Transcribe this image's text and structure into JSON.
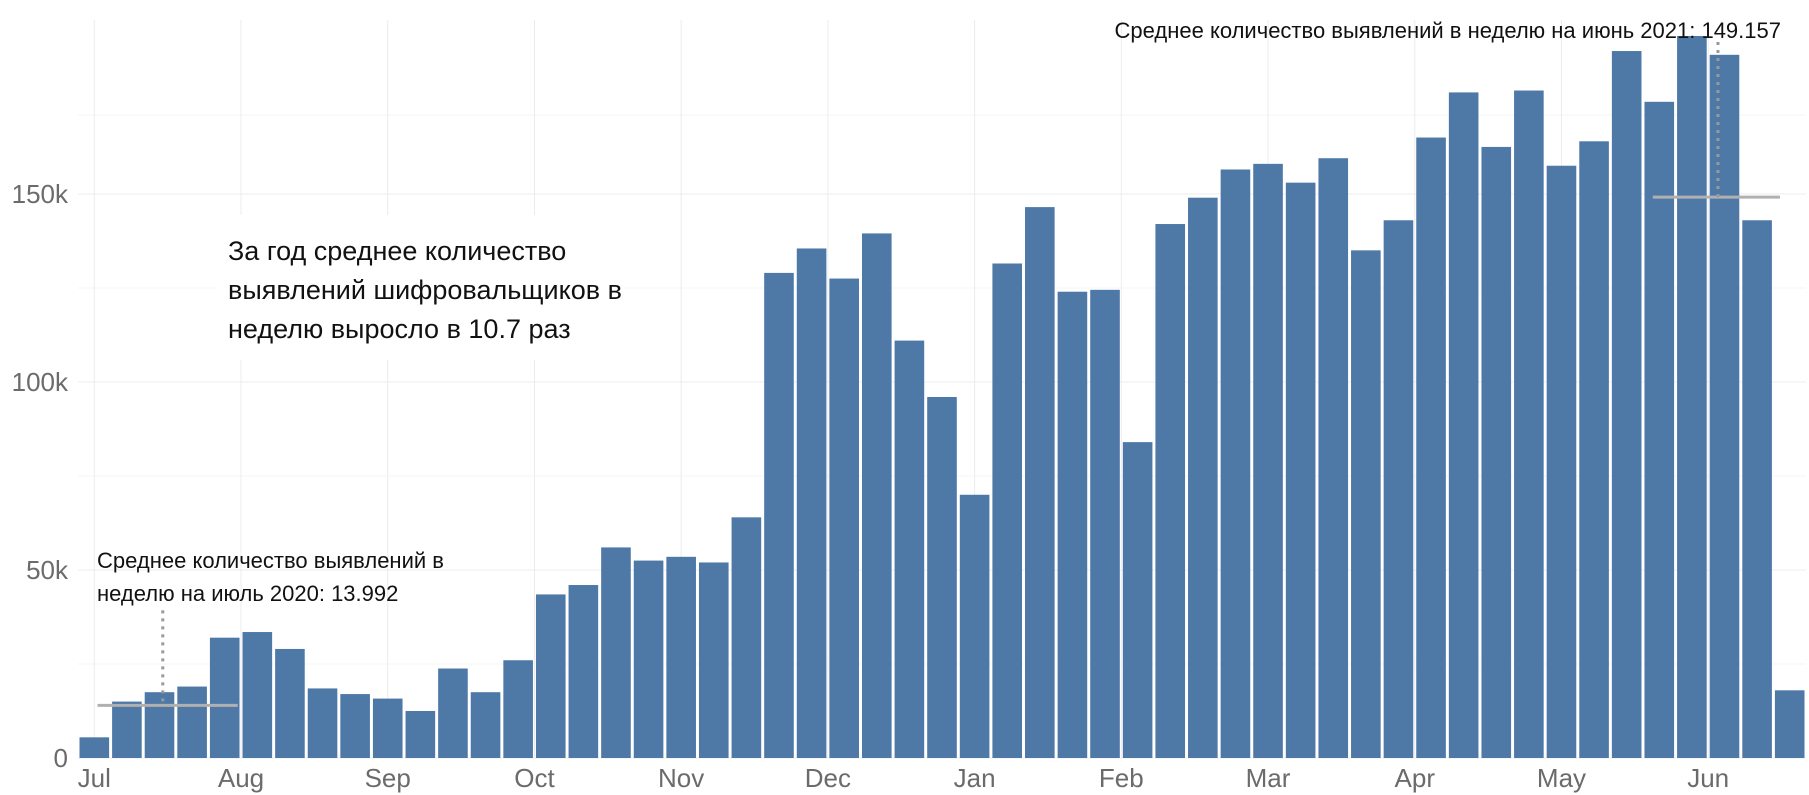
{
  "chart_data": {
    "type": "bar",
    "bar_color": "#4e79a7",
    "x_tick_labels": [
      "Jul",
      "Aug",
      "Sep",
      "Oct",
      "Nov",
      "Dec",
      "Jan",
      "Feb",
      "Mar",
      "Apr",
      "May",
      "Jun"
    ],
    "x_tick_bar_index": [
      0,
      4.5,
      9,
      13.5,
      18,
      22.5,
      27,
      31.5,
      36,
      40.5,
      45,
      49.5
    ],
    "y_ticks": [
      0,
      50000,
      100000,
      150000
    ],
    "y_tick_labels": [
      "0",
      "50k",
      "100k",
      "150k"
    ],
    "ylim": [
      0,
      192000
    ],
    "grid": true,
    "values": [
      5500,
      15000,
      17500,
      19000,
      32000,
      33500,
      29000,
      18500,
      17000,
      15800,
      12500,
      23800,
      17500,
      26000,
      43500,
      46000,
      56000,
      52500,
      53500,
      52000,
      64000,
      129000,
      135500,
      127500,
      139500,
      111000,
      96000,
      70000,
      131500,
      146500,
      124000,
      124500,
      84000,
      142000,
      149000,
      156500,
      158000,
      153000,
      159500,
      135000,
      143000,
      165000,
      177000,
      162500,
      177500,
      157500,
      164000,
      188000,
      174500,
      192000,
      187000,
      143000,
      18000
    ],
    "reference_lines": [
      {
        "value": 13992,
        "from_bar": 0.6,
        "to_bar": 4.9,
        "marker_bar": 2.6,
        "color": "#b0b0b0"
      },
      {
        "value": 149157,
        "from_bar": 48.3,
        "to_bar": 52.2,
        "marker_bar": 50.3,
        "color": "#b0b0b0"
      }
    ]
  },
  "annotations": {
    "july_line1": "Среднее количество выявлений в",
    "july_line2": "неделю на июль 2020: 13.992",
    "june": "Среднее количество выявлений в неделю на июнь 2021: 149.157",
    "growth_line1": "За год среднее количество",
    "growth_line2": "выявлений шифровальщиков в",
    "growth_line3": "неделю выросло в 10.7 раз"
  }
}
